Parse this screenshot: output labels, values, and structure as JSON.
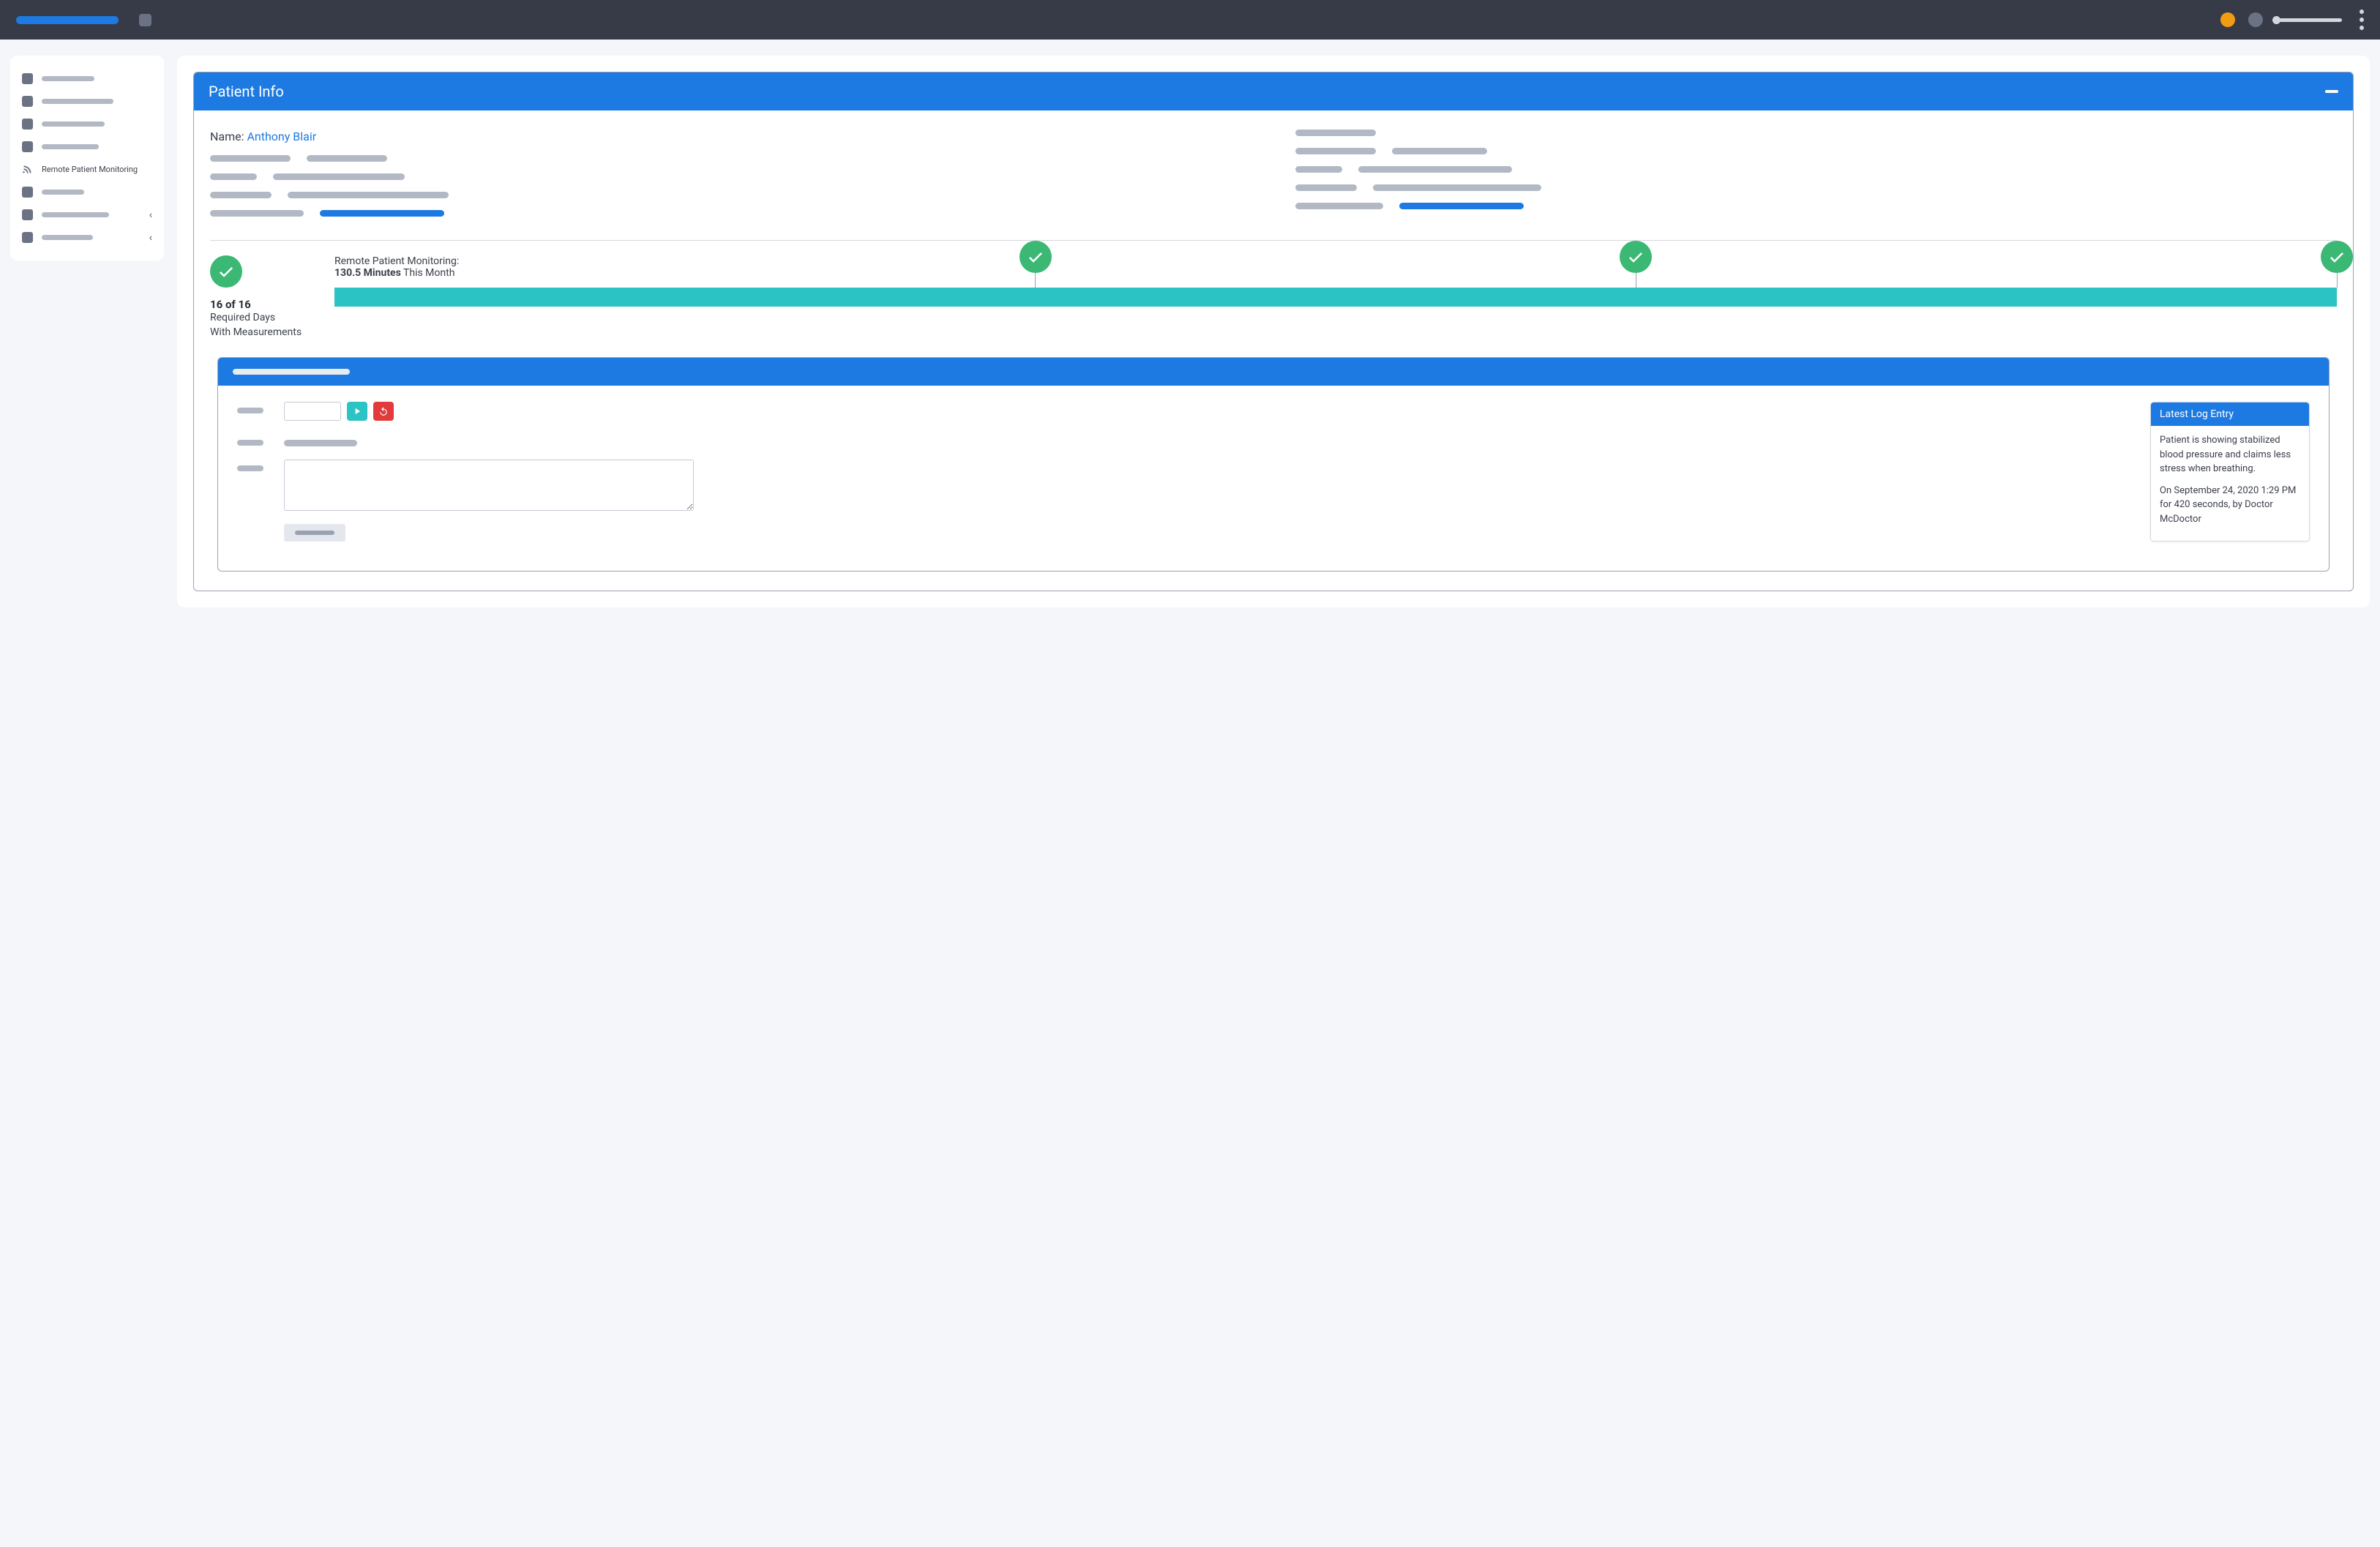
{
  "colors": {
    "primary": "#1d7ae2",
    "topbar": "#373b48",
    "success": "#3bb873",
    "teal": "#2bc3c3",
    "danger": "#e23b3b",
    "orange": "#f39c12",
    "muted": "#b3b9c4"
  },
  "sidebar": {
    "rpm_label": "Remote Patient Monitoring"
  },
  "panel": {
    "title": "Patient Info"
  },
  "patient": {
    "name_label": "Name: ",
    "name_value": "Anthony Blair"
  },
  "stats": {
    "days_count": "16 of 16",
    "days_line1": "Required Days",
    "days_line2": "With Measurements",
    "rpm_label": "Remote Patient Monitoring:",
    "rpm_minutes": "130.5 Minutes",
    "rpm_suffix": " This Month",
    "progress_pct": 100,
    "milestones_pct": [
      35,
      65,
      100
    ]
  },
  "log": {
    "title": "Latest Log Entry",
    "body": "Patient is showing stabilized blood pressure and claims less stress when breathing.",
    "meta": "On September 24, 2020 1:29 PM for 420 seconds, by Doctor McDoctor"
  }
}
